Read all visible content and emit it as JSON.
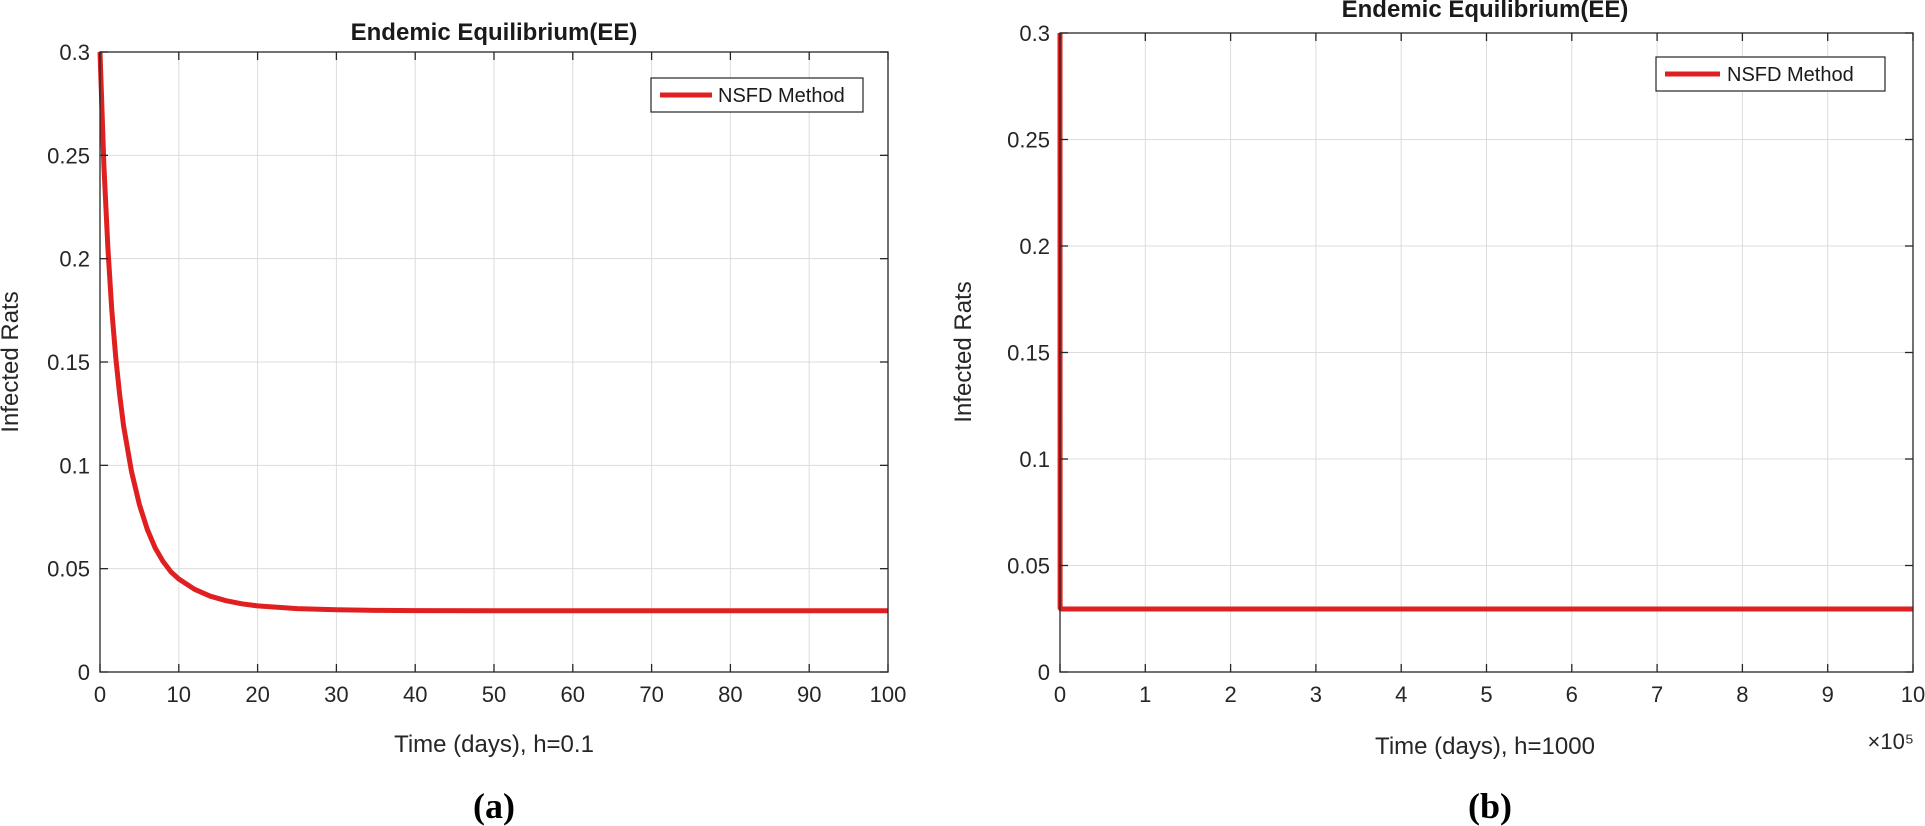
{
  "chart_data": [
    {
      "type": "line",
      "panel_label": "(a)",
      "title": "Endemic Equilibrium(EE)",
      "xlabel": "Time (days), h=0.1",
      "ylabel": "Infected Rats",
      "xlim": [
        0,
        100
      ],
      "ylim": [
        0,
        0.3
      ],
      "x_scale_note": "",
      "xticks": [
        0,
        10,
        20,
        30,
        40,
        50,
        60,
        70,
        80,
        90,
        100
      ],
      "xtick_labels": [
        "0",
        "10",
        "20",
        "30",
        "40",
        "50",
        "60",
        "70",
        "80",
        "90",
        "100"
      ],
      "yticks": [
        0,
        0.05,
        0.1,
        0.15,
        0.2,
        0.25,
        0.3
      ],
      "ytick_labels": [
        "0",
        "0.05",
        "0.1",
        "0.15",
        "0.2",
        "0.25",
        "0.3"
      ],
      "grid": true,
      "legend_position": "top-right",
      "series": [
        {
          "name": "NSFD Method",
          "color": "#e02020",
          "x": [
            0,
            0.5,
            1,
            1.5,
            2,
            2.5,
            3,
            4,
            5,
            6,
            7,
            8,
            9,
            10,
            12,
            14,
            16,
            18,
            20,
            25,
            30,
            35,
            40,
            50,
            60,
            70,
            80,
            90,
            100
          ],
          "y": [
            0.3,
            0.245,
            0.205,
            0.175,
            0.152,
            0.134,
            0.119,
            0.097,
            0.081,
            0.069,
            0.06,
            0.0535,
            0.0485,
            0.045,
            0.04,
            0.0367,
            0.0345,
            0.033,
            0.032,
            0.0307,
            0.0301,
            0.0298,
            0.0297,
            0.0296,
            0.0296,
            0.0296,
            0.0296,
            0.0296,
            0.0296
          ]
        }
      ]
    },
    {
      "type": "line",
      "panel_label": "(b)",
      "title": "Endemic Equilibrium(EE)",
      "xlabel": "Time (days), h=1000",
      "ylabel": "Infected Rats",
      "xlim": [
        0,
        10
      ],
      "ylim": [
        0,
        0.3
      ],
      "x_scale_note": "×10⁵",
      "xticks": [
        0,
        1,
        2,
        3,
        4,
        5,
        6,
        7,
        8,
        9,
        10
      ],
      "xtick_labels": [
        "0",
        "1",
        "2",
        "3",
        "4",
        "5",
        "6",
        "7",
        "8",
        "9",
        "10"
      ],
      "yticks": [
        0,
        0.05,
        0.1,
        0.15,
        0.2,
        0.25,
        0.3
      ],
      "ytick_labels": [
        "0",
        "0.05",
        "0.1",
        "0.15",
        "0.2",
        "0.25",
        "0.3"
      ],
      "grid": true,
      "legend_position": "top-right",
      "series": [
        {
          "name": "NSFD Method",
          "color": "#e02020",
          "x": [
            0,
            0.001,
            0.01,
            1,
            2,
            3,
            4,
            5,
            6,
            7,
            8,
            9,
            10
          ],
          "y": [
            0.3,
            0.03,
            0.0296,
            0.0296,
            0.0296,
            0.0296,
            0.0296,
            0.0296,
            0.0296,
            0.0296,
            0.0296,
            0.0296,
            0.0296
          ]
        }
      ]
    }
  ]
}
